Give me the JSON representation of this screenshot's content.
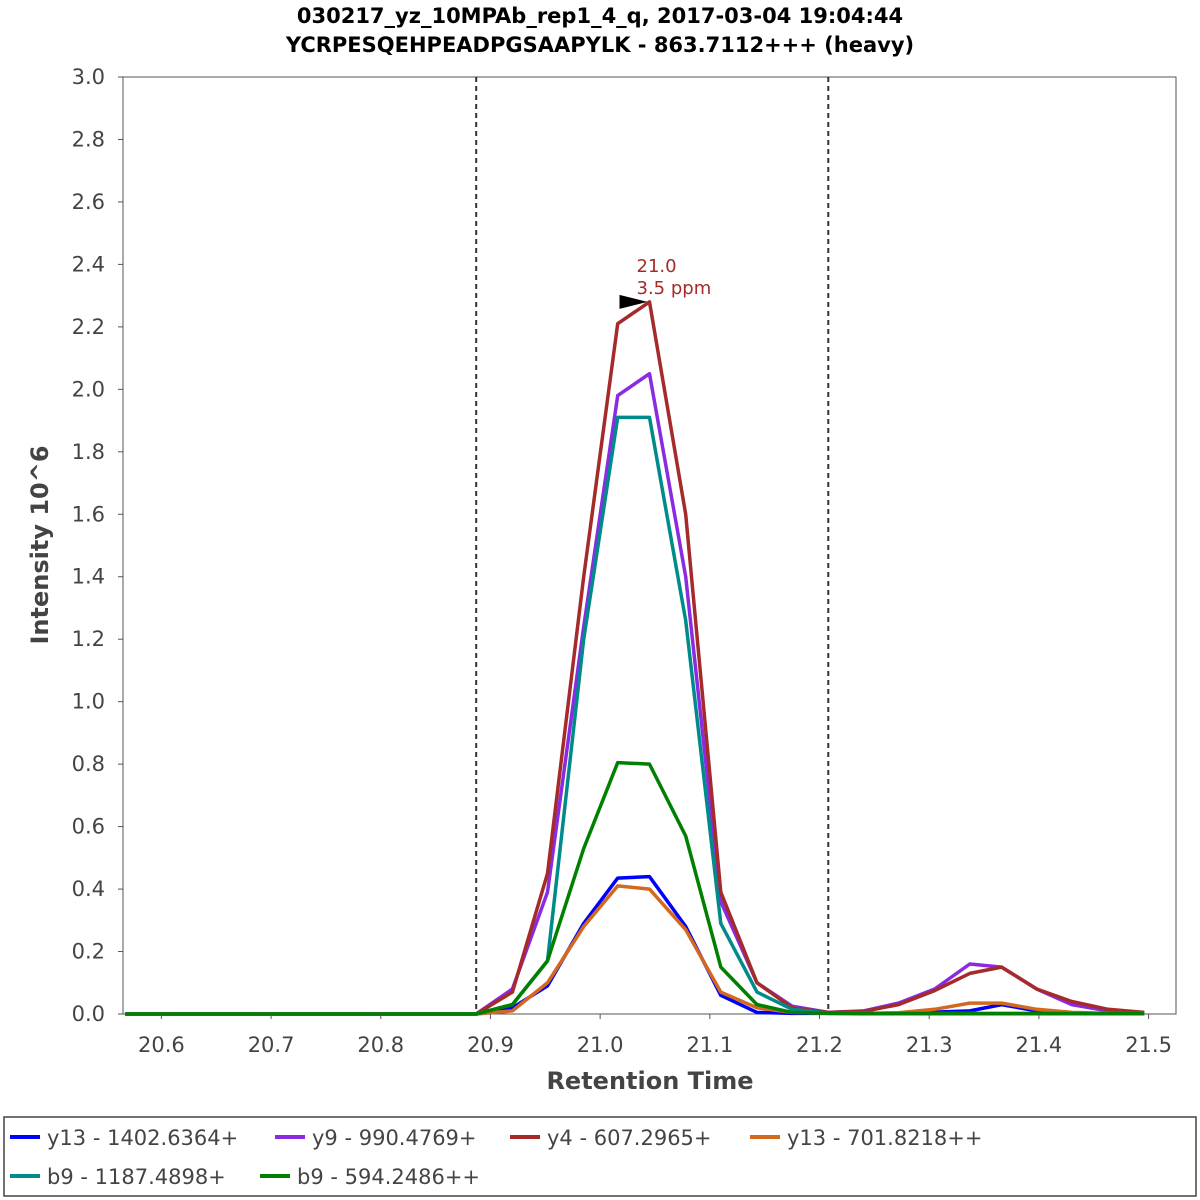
{
  "chart_data": {
    "type": "line",
    "title": "030217_yz_10MPAb_rep1_4_q, 2017-03-04 19:04:44",
    "subtitle": "YCRPESQEHPEADPGSAAPYLK - 863.7112+++ (heavy)",
    "xlabel": "Retention Time",
    "ylabel": "Intensity 10^6",
    "xlim": [
      20.565,
      21.525
    ],
    "ylim": [
      0.0,
      3.0
    ],
    "grid": false,
    "legend_position": "bottom",
    "x_ticks": [
      "20.6",
      "20.7",
      "20.8",
      "20.9",
      "21.0",
      "21.1",
      "21.2",
      "21.3",
      "21.4",
      "21.5"
    ],
    "y_ticks": [
      "0.0",
      "0.2",
      "0.4",
      "0.6",
      "0.8",
      "1.0",
      "1.2",
      "1.4",
      "1.6",
      "1.8",
      "2.0",
      "2.2",
      "2.4",
      "2.6",
      "2.8",
      "3.0"
    ],
    "integration_boundaries": [
      20.887,
      21.208
    ],
    "annotation": {
      "lines": [
        "21.0",
        "3.5 ppm"
      ],
      "x": 21.045,
      "y": 2.28,
      "color": "#a52a2a"
    },
    "x": [
      20.567,
      20.6,
      20.633,
      20.666,
      20.699,
      20.732,
      20.765,
      20.798,
      20.831,
      20.864,
      20.887,
      20.92,
      20.952,
      20.985,
      21.016,
      21.045,
      21.078,
      21.11,
      21.143,
      21.175,
      21.208,
      21.24,
      21.272,
      21.305,
      21.337,
      21.366,
      21.398,
      21.43,
      21.463,
      21.496
    ],
    "series": [
      {
        "name": "y13 - 1402.6364+",
        "color": "#0000ff",
        "values": [
          0,
          0,
          0,
          0,
          0,
          0,
          0,
          0,
          0,
          0,
          0,
          0.02,
          0.09,
          0.29,
          0.435,
          0.44,
          0.28,
          0.06,
          0.005,
          0.002,
          0.002,
          0.002,
          0.003,
          0.006,
          0.01,
          0.03,
          0.01,
          0.002,
          0.001,
          0.001
        ]
      },
      {
        "name": "y9 - 990.4769+",
        "color": "#8a2be2",
        "values": [
          0,
          0,
          0,
          0,
          0,
          0,
          0,
          0,
          0,
          0,
          0,
          0.08,
          0.39,
          1.24,
          1.98,
          2.05,
          1.4,
          0.36,
          0.1,
          0.025,
          0.005,
          0.01,
          0.035,
          0.08,
          0.16,
          0.15,
          0.08,
          0.03,
          0.01,
          0.003
        ]
      },
      {
        "name": "y4 - 607.2965+",
        "color": "#a52a2a",
        "values": [
          0,
          0,
          0,
          0,
          0,
          0,
          0,
          0,
          0,
          0,
          0,
          0.07,
          0.45,
          1.4,
          2.21,
          2.28,
          1.6,
          0.39,
          0.1,
          0.02,
          0.005,
          0.008,
          0.03,
          0.075,
          0.13,
          0.15,
          0.08,
          0.04,
          0.015,
          0.005
        ]
      },
      {
        "name": "y13 - 701.8218++",
        "color": "#d2691e",
        "values": [
          0,
          0,
          0,
          0,
          0,
          0,
          0,
          0,
          0,
          0,
          0,
          0.01,
          0.1,
          0.28,
          0.41,
          0.4,
          0.27,
          0.07,
          0.02,
          0.005,
          0.002,
          0.002,
          0.004,
          0.015,
          0.035,
          0.035,
          0.015,
          0.005,
          0.002,
          0.001
        ]
      },
      {
        "name": "b9 - 1187.4898+",
        "color": "#008b8b",
        "values": [
          0,
          0,
          0,
          0,
          0,
          0,
          0,
          0,
          0,
          0,
          0,
          0.03,
          0.17,
          1.2,
          1.91,
          1.91,
          1.26,
          0.29,
          0.07,
          0.015,
          0.003,
          0.002,
          0.002,
          0.002,
          0.002,
          0.002,
          0.002,
          0.002,
          0.002,
          0.002
        ]
      },
      {
        "name": "b9 - 594.2486++",
        "color": "#008000",
        "values": [
          0,
          0,
          0,
          0,
          0,
          0,
          0,
          0,
          0,
          0,
          0,
          0.03,
          0.17,
          0.53,
          0.805,
          0.8,
          0.57,
          0.15,
          0.03,
          0.005,
          0.002,
          0.001,
          0.001,
          0.001,
          0.001,
          0.001,
          0.001,
          0.001,
          0.001,
          0.001
        ]
      }
    ]
  }
}
